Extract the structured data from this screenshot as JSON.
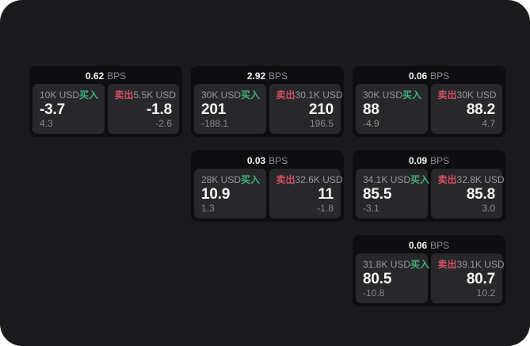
{
  "labels": {
    "bps_unit": "BPS",
    "buy": "买入",
    "sell": "卖出"
  },
  "colors": {
    "buy": "#3fb078",
    "sell": "#d25064",
    "panel_bg": "#1a1a1c",
    "card_bg": "#0e0e10",
    "tile_bg": "#28282b",
    "primary_text": "#f5f5f6",
    "muted_text": "#98989c"
  },
  "cards": [
    {
      "bps": "0.62",
      "row": 1,
      "col": 1,
      "buy": {
        "amount": "10K USD",
        "price": "-3.7",
        "delta": "4.3"
      },
      "sell": {
        "amount": "5.5K USD",
        "price": "-1.8",
        "delta": "-2.6"
      }
    },
    {
      "bps": "2.92",
      "row": 1,
      "col": 2,
      "buy": {
        "amount": "30K USD",
        "price": "201",
        "delta": "-188.1"
      },
      "sell": {
        "amount": "30.1K USD",
        "price": "210",
        "delta": "196.5"
      }
    },
    {
      "bps": "0.06",
      "row": 1,
      "col": 3,
      "buy": {
        "amount": "30K USD",
        "price": "88",
        "delta": "-4.9"
      },
      "sell": {
        "amount": "30K USD",
        "price": "88.2",
        "delta": "4.7"
      }
    },
    {
      "bps": "0.03",
      "row": 2,
      "col": 2,
      "buy": {
        "amount": "28K USD",
        "price": "10.9",
        "delta": "1.3"
      },
      "sell": {
        "amount": "32.6K USD",
        "price": "11",
        "delta": "-1.8"
      }
    },
    {
      "bps": "0.09",
      "row": 2,
      "col": 3,
      "buy": {
        "amount": "34.1K USD",
        "price": "85.5",
        "delta": "-3.1"
      },
      "sell": {
        "amount": "32.8K USD",
        "price": "85.8",
        "delta": "3.0"
      }
    },
    {
      "bps": "0.06",
      "row": 3,
      "col": 3,
      "buy": {
        "amount": "31.8K USD",
        "price": "80.5",
        "delta": "-10.8"
      },
      "sell": {
        "amount": "39.1K USD",
        "price": "80.7",
        "delta": "10.2"
      }
    }
  ]
}
